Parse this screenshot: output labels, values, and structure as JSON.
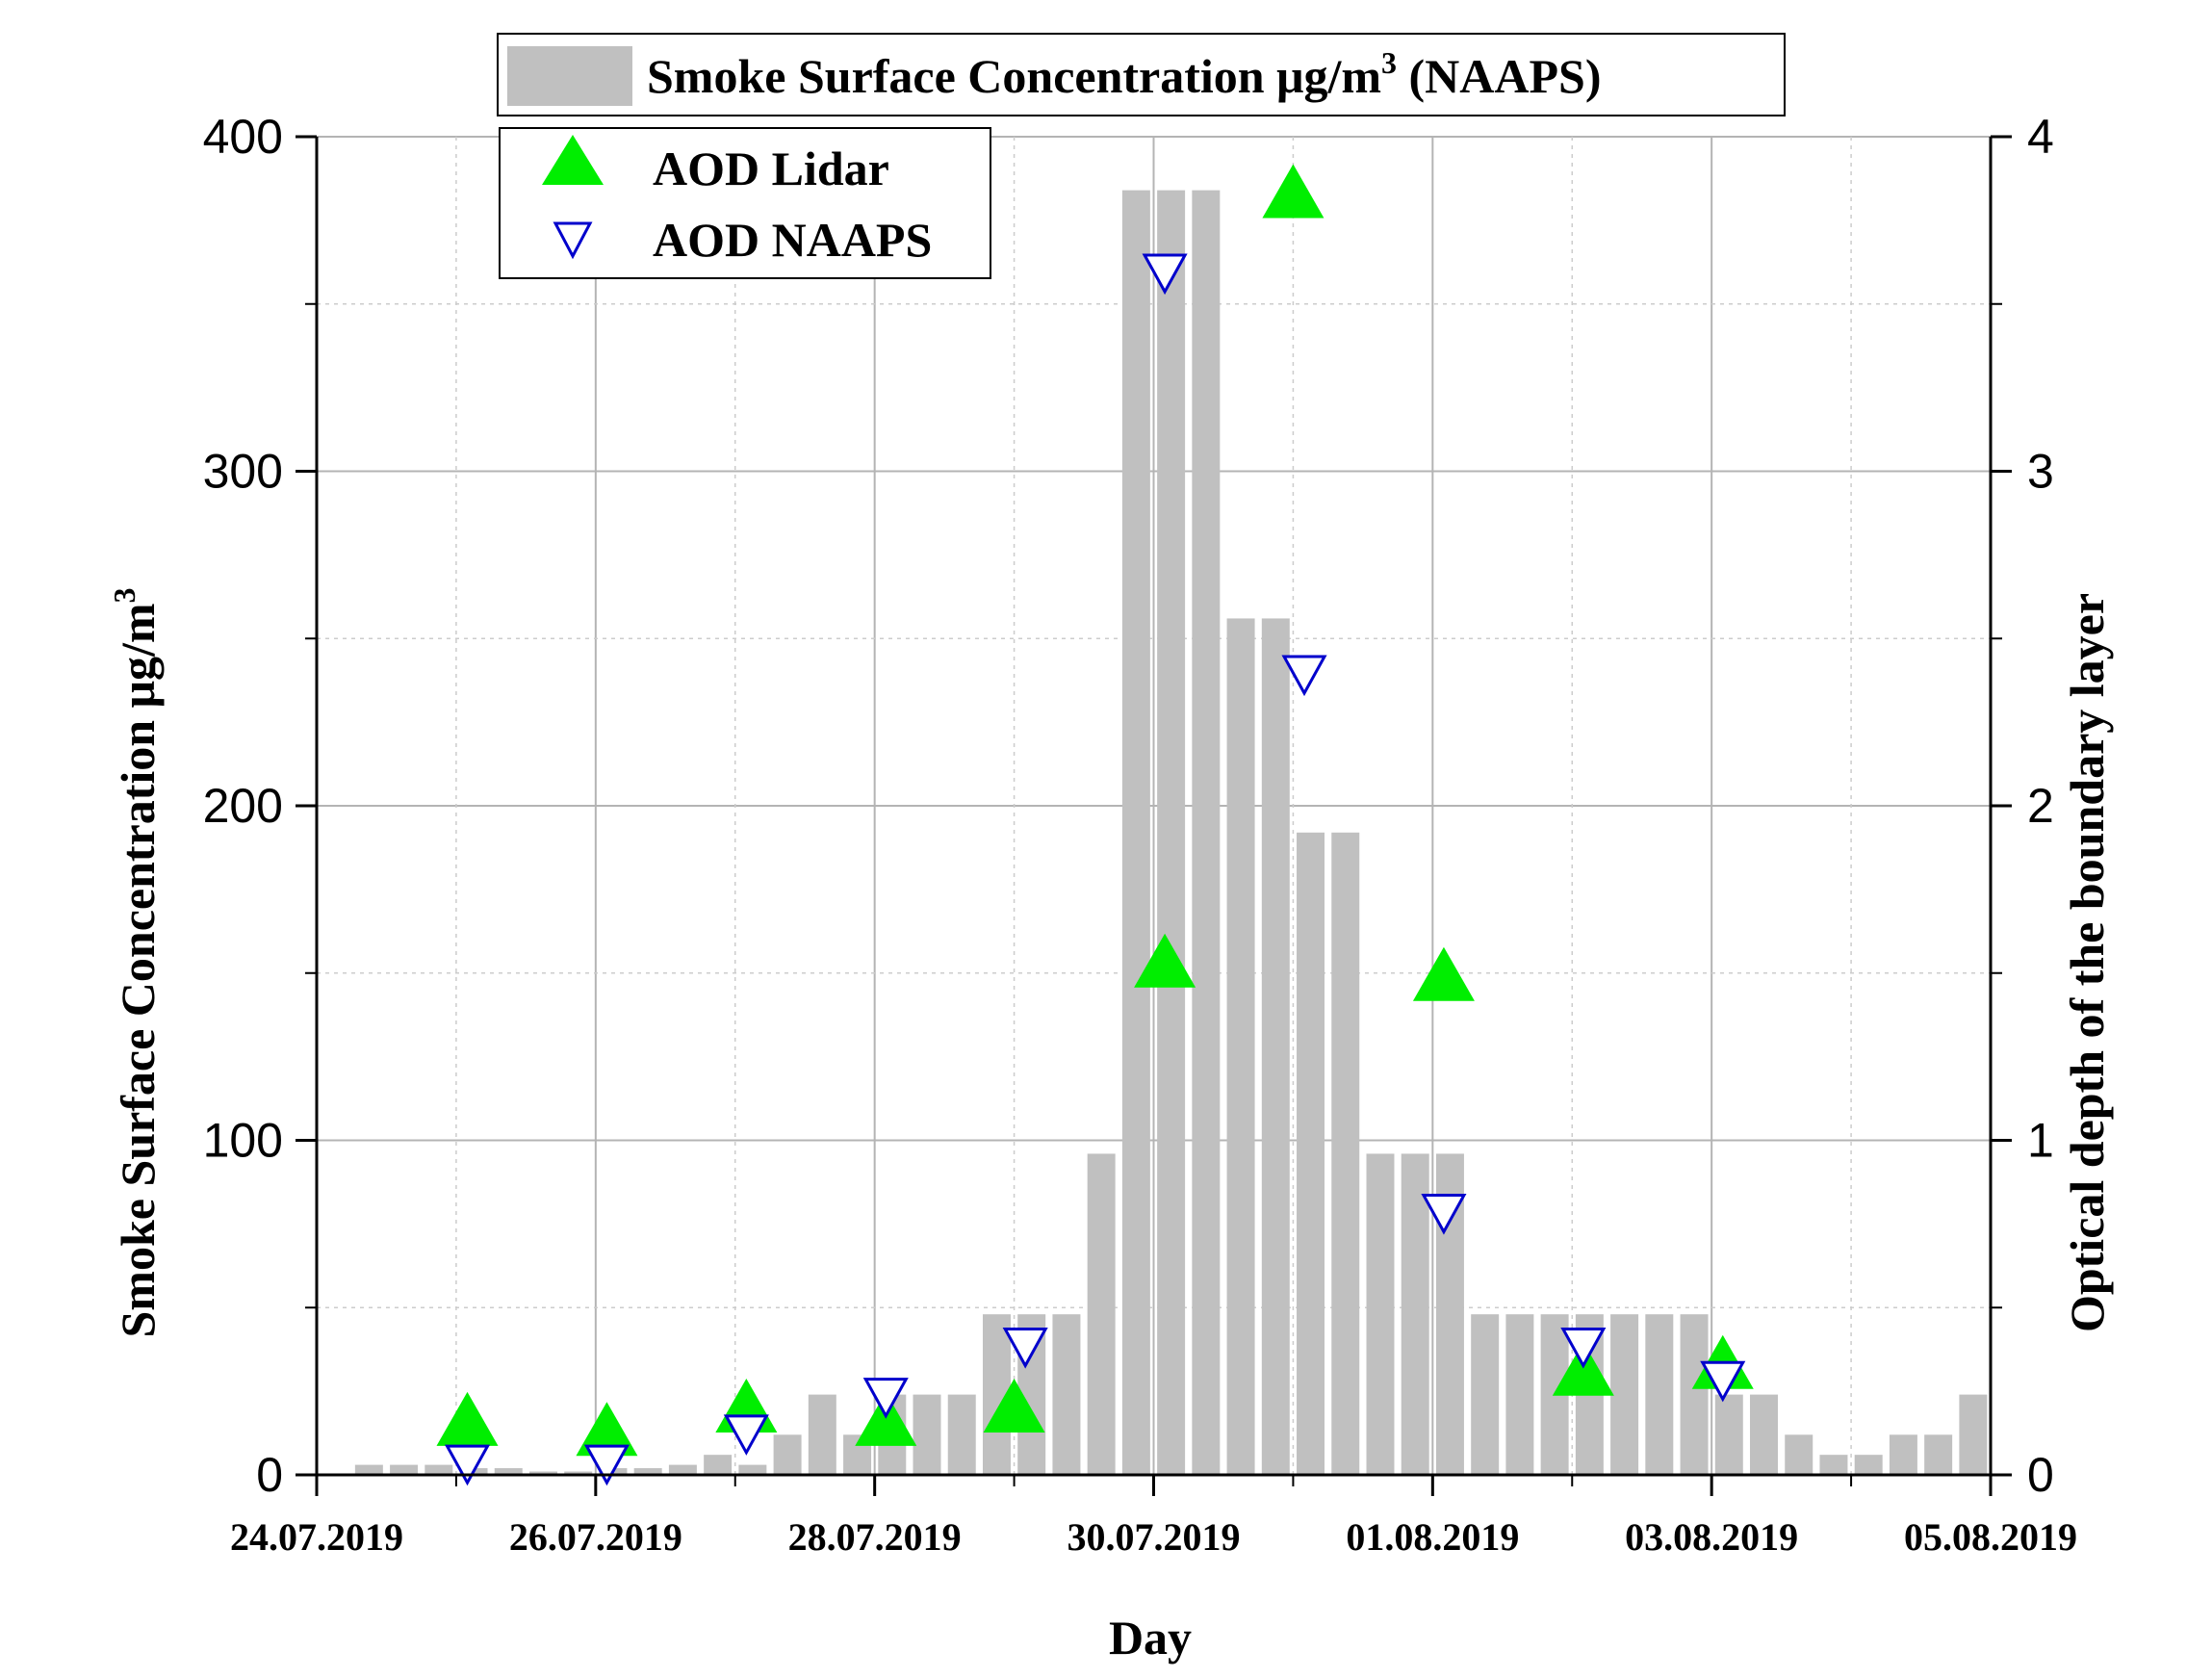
{
  "chart_data": {
    "type": "bar",
    "legend": {
      "bar_label_prefix": "Smoke Surface Concentration μg/m",
      "bar_label_sup": "3",
      "bar_label_suffix": " (NAAPS)",
      "lidar_label": "AOD Lidar",
      "naaps_label": "AOD NAAPS",
      "placement": "top-left"
    },
    "xlabel": "Day",
    "ylabel_prefix": "Smoke Surface Concentration μg/m",
    "ylabel_sup": "3",
    "y2label": "Optical depth of the boundary layer",
    "xlim": [
      0,
      12
    ],
    "ylim": [
      0,
      400
    ],
    "y2lim": [
      0,
      4
    ],
    "x_tick_labels": [
      "24.07.2019",
      "26.07.2019",
      "28.07.2019",
      "30.07.2019",
      "01.08.2019",
      "03.08.2019",
      "05.08.2019"
    ],
    "x_tick_days": [
      0,
      2,
      4,
      6,
      8,
      10,
      12
    ],
    "y_tick_labels": [
      "0",
      "100",
      "200",
      "300",
      "400"
    ],
    "y_tick_values": [
      0,
      100,
      200,
      300,
      400
    ],
    "y2_tick_labels": [
      "0",
      "1",
      "2",
      "3",
      "4"
    ],
    "y2_tick_values": [
      0,
      1,
      2,
      3,
      4
    ],
    "bar_width_days": 0.2,
    "bars": {
      "name": "Smoke Surface Concentration μg/m3 (NAAPS)",
      "x": [
        0.375,
        0.625,
        0.875,
        1.125,
        1.375,
        1.625,
        1.875,
        2.125,
        2.375,
        2.625,
        2.875,
        3.125,
        3.375,
        3.625,
        3.875,
        4.125,
        4.375,
        4.625,
        4.875,
        5.125,
        5.375,
        5.625,
        5.875,
        6.125,
        6.375,
        6.625,
        6.875,
        7.125,
        7.375,
        7.625,
        7.875,
        8.125,
        8.375,
        8.625,
        8.875,
        9.125,
        9.375,
        9.625,
        9.875,
        10.125,
        10.375,
        10.625,
        10.875,
        11.125,
        11.375,
        11.625,
        11.875
      ],
      "values": [
        3,
        3,
        3,
        2,
        2,
        1,
        1,
        2,
        2,
        3,
        6,
        3,
        12,
        24,
        12,
        24,
        24,
        24,
        48,
        48,
        48,
        96,
        384,
        384,
        384,
        256,
        256,
        192,
        192,
        96,
        96,
        96,
        48,
        48,
        48,
        48,
        48,
        48,
        48,
        24,
        24,
        12,
        6,
        6,
        12,
        12,
        24
      ],
      "color": "#c0c0c0"
    },
    "series": [
      {
        "name": "AOD Lidar",
        "axis": "right",
        "x": [
          1.08,
          2.08,
          3.08,
          4.08,
          5.0,
          6.08,
          7.0,
          8.08,
          9.08,
          10.08
        ],
        "values": [
          0.15,
          0.12,
          0.19,
          0.15,
          0.19,
          1.52,
          3.82,
          1.48,
          0.3,
          0.32
        ],
        "color": "#00ee00",
        "marker": "triangle-up"
      },
      {
        "name": "AOD NAAPS",
        "axis": "right",
        "x": [
          1.08,
          2.08,
          3.08,
          4.08,
          5.08,
          6.08,
          7.08,
          8.08,
          9.08,
          10.08
        ],
        "values": [
          0.04,
          0.04,
          0.13,
          0.24,
          0.39,
          3.6,
          2.4,
          0.79,
          0.39,
          0.29
        ],
        "color": "#0000cc",
        "marker": "triangle-down-open"
      }
    ],
    "grid": true
  }
}
